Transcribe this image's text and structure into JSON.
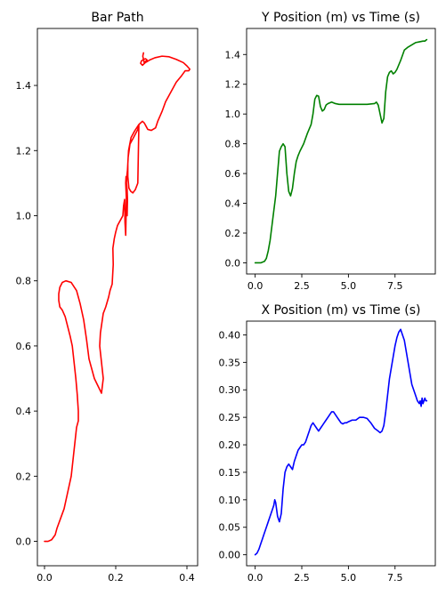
{
  "chart_data": [
    {
      "id": "bar-path",
      "type": "line",
      "title": "Bar Path",
      "xlabel": "",
      "ylabel": "",
      "xlim": [
        -0.02,
        0.43
      ],
      "ylim": [
        -0.075,
        1.575
      ],
      "xticks": [
        0.0,
        0.2,
        0.4
      ],
      "xtick_labels": [
        "0.0",
        "0.2",
        "0.4"
      ],
      "yticks": [
        0.0,
        0.2,
        0.4,
        0.6,
        0.8,
        1.0,
        1.2,
        1.4
      ],
      "ytick_labels": [
        "0.0",
        "0.2",
        "0.4",
        "0.6",
        "0.8",
        "1.0",
        "1.2",
        "1.4"
      ],
      "grid": false,
      "series": [
        {
          "color": "#ff0000",
          "x": [
            0.0,
            0.01,
            0.02,
            0.03,
            0.035,
            0.045,
            0.055,
            0.065,
            0.075,
            0.08,
            0.085,
            0.09,
            0.095,
            0.095,
            0.092,
            0.088,
            0.083,
            0.078,
            0.072,
            0.065,
            0.058,
            0.05,
            0.043,
            0.04,
            0.04,
            0.043,
            0.05,
            0.06,
            0.075,
            0.09,
            0.1,
            0.11,
            0.118,
            0.125,
            0.14,
            0.16,
            0.165,
            0.155,
            0.157,
            0.165,
            0.172,
            0.18,
            0.184,
            0.19,
            0.193,
            0.192,
            0.196,
            0.2,
            0.205,
            0.21,
            0.22,
            0.222,
            0.225,
            0.226,
            0.228,
            0.23,
            0.228,
            0.229,
            0.23,
            0.231,
            0.232,
            0.233,
            0.232,
            0.23,
            0.231,
            0.233,
            0.235,
            0.24,
            0.25,
            0.262,
            0.265,
            0.262,
            0.255,
            0.248,
            0.242,
            0.237,
            0.234,
            0.234,
            0.236,
            0.243,
            0.253,
            0.265,
            0.275,
            0.28,
            0.285,
            0.29,
            0.3,
            0.312,
            0.318,
            0.33,
            0.34,
            0.355,
            0.37,
            0.385,
            0.395,
            0.405,
            0.408,
            0.4,
            0.39,
            0.37,
            0.35,
            0.33,
            0.31,
            0.295,
            0.283,
            0.275,
            0.27,
            0.272,
            0.278,
            0.284,
            0.288,
            0.28,
            0.276,
            0.278
          ],
          "y": [
            0.0,
            0.0,
            0.005,
            0.02,
            0.04,
            0.07,
            0.1,
            0.15,
            0.2,
            0.25,
            0.3,
            0.35,
            0.37,
            0.4,
            0.45,
            0.5,
            0.55,
            0.6,
            0.63,
            0.66,
            0.69,
            0.71,
            0.72,
            0.74,
            0.76,
            0.78,
            0.795,
            0.8,
            0.795,
            0.77,
            0.73,
            0.68,
            0.62,
            0.56,
            0.5,
            0.455,
            0.5,
            0.6,
            0.64,
            0.7,
            0.72,
            0.75,
            0.77,
            0.79,
            0.85,
            0.9,
            0.93,
            0.95,
            0.97,
            0.98,
            1.0,
            1.03,
            1.05,
            0.98,
            0.94,
            1.05,
            1.1,
            1.12,
            1.08,
            1.03,
            1.0,
            1.05,
            1.08,
            1.1,
            1.12,
            1.14,
            1.18,
            1.22,
            1.24,
            1.265,
            1.28,
            1.1,
            1.08,
            1.07,
            1.075,
            1.085,
            1.12,
            1.16,
            1.2,
            1.24,
            1.26,
            1.28,
            1.29,
            1.285,
            1.275,
            1.265,
            1.262,
            1.27,
            1.29,
            1.32,
            1.35,
            1.38,
            1.41,
            1.43,
            1.445,
            1.445,
            1.45,
            1.46,
            1.47,
            1.48,
            1.488,
            1.49,
            1.485,
            1.478,
            1.47,
            1.462,
            1.468,
            1.475,
            1.48,
            1.482,
            1.478,
            1.47,
            1.49,
            1.5
          ]
        }
      ]
    },
    {
      "id": "y-position",
      "type": "line",
      "title": "Y Position (m) vs Time (s)",
      "xlabel": "",
      "ylabel": "",
      "xlim": [
        -0.46,
        9.66
      ],
      "ylim": [
        -0.075,
        1.575
      ],
      "xticks": [
        0.0,
        2.5,
        5.0,
        7.5
      ],
      "xtick_labels": [
        "0.0",
        "2.5",
        "5.0",
        "7.5"
      ],
      "yticks": [
        0.0,
        0.2,
        0.4,
        0.6,
        0.8,
        1.0,
        1.2,
        1.4
      ],
      "ytick_labels": [
        "0.0",
        "0.2",
        "0.4",
        "0.6",
        "0.8",
        "1.0",
        "1.2",
        "1.4"
      ],
      "grid": false,
      "series": [
        {
          "color": "#008000",
          "x": [
            0.0,
            0.3,
            0.4,
            0.5,
            0.6,
            0.7,
            0.8,
            0.9,
            1.0,
            1.1,
            1.2,
            1.3,
            1.4,
            1.5,
            1.6,
            1.7,
            1.8,
            1.9,
            2.0,
            2.1,
            2.2,
            2.3,
            2.4,
            2.6,
            2.8,
            3.0,
            3.1,
            3.2,
            3.3,
            3.4,
            3.5,
            3.6,
            3.7,
            3.8,
            3.9,
            4.1,
            4.3,
            4.5,
            5.0,
            5.5,
            6.0,
            6.4,
            6.5,
            6.6,
            6.7,
            6.8,
            6.9,
            7.0,
            7.1,
            7.2,
            7.3,
            7.4,
            7.5,
            7.6,
            7.8,
            8.0,
            8.2,
            8.4,
            8.6,
            8.8,
            9.0,
            9.1,
            9.2
          ],
          "y": [
            0.0,
            0.0,
            0.005,
            0.01,
            0.03,
            0.08,
            0.15,
            0.25,
            0.35,
            0.45,
            0.6,
            0.75,
            0.78,
            0.8,
            0.78,
            0.6,
            0.48,
            0.45,
            0.5,
            0.6,
            0.68,
            0.72,
            0.75,
            0.8,
            0.87,
            0.93,
            1.0,
            1.1,
            1.125,
            1.12,
            1.05,
            1.02,
            1.03,
            1.06,
            1.07,
            1.08,
            1.07,
            1.065,
            1.065,
            1.065,
            1.065,
            1.07,
            1.08,
            1.06,
            1.0,
            0.94,
            0.97,
            1.15,
            1.25,
            1.28,
            1.29,
            1.27,
            1.28,
            1.3,
            1.36,
            1.43,
            1.45,
            1.465,
            1.48,
            1.485,
            1.49,
            1.49,
            1.5
          ]
        }
      ]
    },
    {
      "id": "x-position",
      "type": "line",
      "title": "X Position (m) vs Time (s)",
      "xlabel": "",
      "ylabel": "",
      "xlim": [
        -0.46,
        9.66
      ],
      "ylim": [
        -0.02,
        0.425
      ],
      "xticks": [
        0.0,
        2.5,
        5.0,
        7.5
      ],
      "xtick_labels": [
        "0.0",
        "2.5",
        "5.0",
        "7.5"
      ],
      "yticks": [
        0.0,
        0.05,
        0.1,
        0.15,
        0.2,
        0.25,
        0.3,
        0.35,
        0.4
      ],
      "ytick_labels": [
        "0.00",
        "0.05",
        "0.10",
        "0.15",
        "0.20",
        "0.25",
        "0.30",
        "0.35",
        "0.40"
      ],
      "grid": false,
      "series": [
        {
          "color": "#0000ff",
          "x": [
            0.0,
            0.1,
            0.2,
            0.3,
            0.4,
            0.5,
            0.6,
            0.7,
            0.8,
            0.9,
            1.0,
            1.05,
            1.1,
            1.2,
            1.3,
            1.4,
            1.5,
            1.6,
            1.7,
            1.8,
            1.9,
            2.0,
            2.1,
            2.2,
            2.3,
            2.4,
            2.5,
            2.6,
            2.7,
            2.8,
            2.9,
            3.0,
            3.1,
            3.2,
            3.3,
            3.4,
            3.5,
            3.6,
            3.7,
            3.8,
            3.9,
            4.0,
            4.1,
            4.2,
            4.3,
            4.4,
            4.5,
            4.6,
            4.7,
            4.8,
            4.9,
            5.0,
            5.2,
            5.4,
            5.6,
            5.8,
            6.0,
            6.2,
            6.4,
            6.6,
            6.7,
            6.8,
            6.9,
            7.0,
            7.1,
            7.2,
            7.3,
            7.4,
            7.5,
            7.6,
            7.7,
            7.8,
            7.9,
            8.0,
            8.1,
            8.2,
            8.3,
            8.4,
            8.5,
            8.6,
            8.7,
            8.8,
            8.85,
            8.9,
            8.95,
            9.0,
            9.05,
            9.1,
            9.15,
            9.2
          ],
          "y": [
            0.0,
            0.003,
            0.01,
            0.02,
            0.03,
            0.04,
            0.05,
            0.06,
            0.07,
            0.08,
            0.09,
            0.1,
            0.095,
            0.07,
            0.06,
            0.075,
            0.12,
            0.15,
            0.16,
            0.165,
            0.16,
            0.155,
            0.17,
            0.18,
            0.19,
            0.195,
            0.2,
            0.2,
            0.205,
            0.215,
            0.225,
            0.235,
            0.24,
            0.235,
            0.23,
            0.225,
            0.23,
            0.235,
            0.24,
            0.245,
            0.25,
            0.255,
            0.26,
            0.26,
            0.255,
            0.25,
            0.245,
            0.24,
            0.238,
            0.24,
            0.24,
            0.242,
            0.245,
            0.245,
            0.25,
            0.25,
            0.248,
            0.24,
            0.23,
            0.225,
            0.222,
            0.225,
            0.235,
            0.26,
            0.29,
            0.32,
            0.34,
            0.36,
            0.38,
            0.395,
            0.405,
            0.41,
            0.4,
            0.39,
            0.37,
            0.35,
            0.33,
            0.31,
            0.3,
            0.29,
            0.28,
            0.275,
            0.28,
            0.27,
            0.285,
            0.275,
            0.28,
            0.285,
            0.28,
            0.28
          ]
        }
      ]
    }
  ]
}
